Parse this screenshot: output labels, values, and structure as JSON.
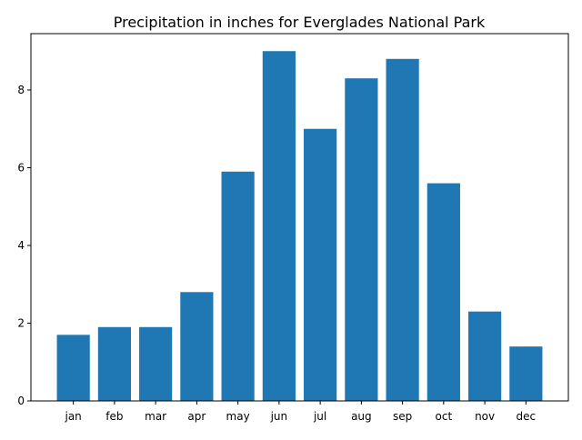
{
  "chart_data": {
    "type": "bar",
    "title": "Precipitation in inches for Everglades National Park",
    "xlabel": "",
    "ylabel": "",
    "categories": [
      "jan",
      "feb",
      "mar",
      "apr",
      "may",
      "jun",
      "jul",
      "aug",
      "sep",
      "oct",
      "nov",
      "dec"
    ],
    "values": [
      1.7,
      1.9,
      1.9,
      2.8,
      5.9,
      9.0,
      7.0,
      8.3,
      8.8,
      5.6,
      2.3,
      1.4
    ],
    "ylim": [
      0,
      9.45
    ],
    "yticks": [
      0,
      2,
      4,
      6,
      8
    ],
    "grid": false,
    "bar_color": "#1f77b4"
  }
}
